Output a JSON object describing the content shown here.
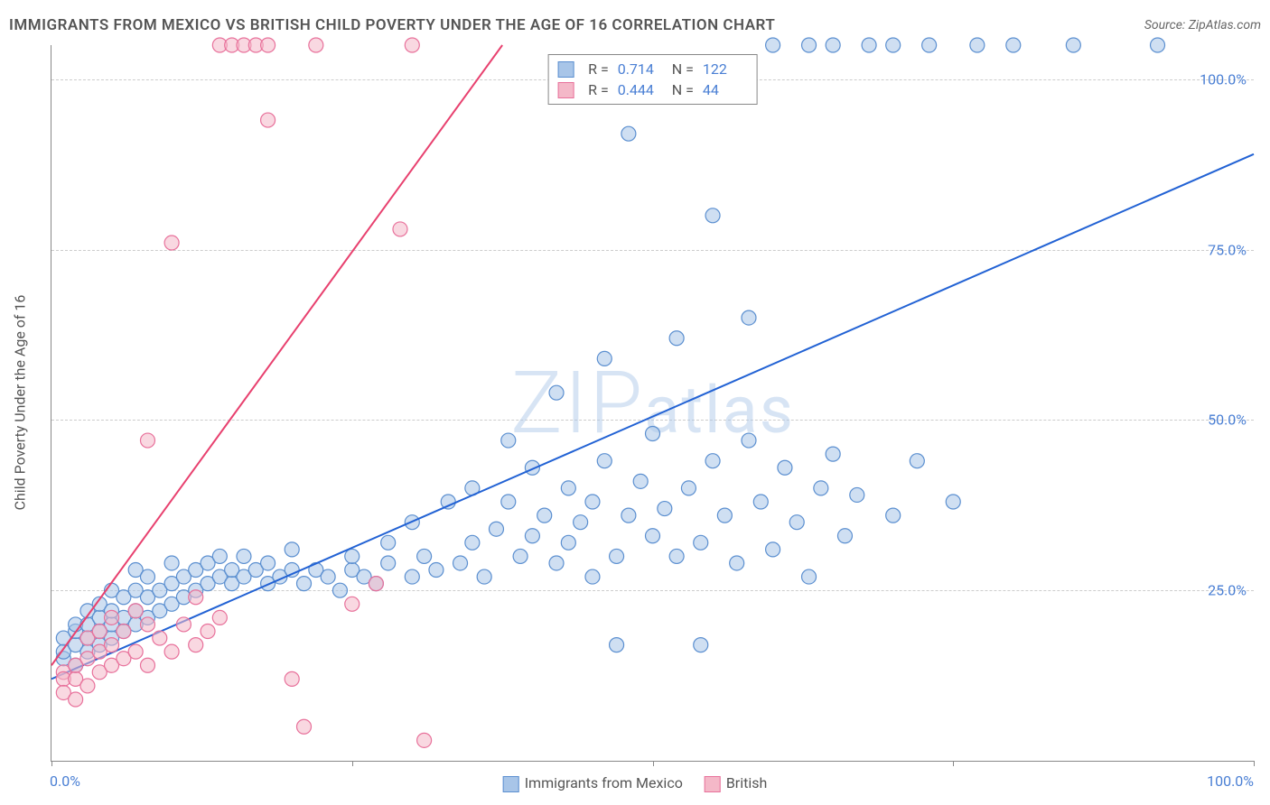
{
  "title": "IMMIGRANTS FROM MEXICO VS BRITISH CHILD POVERTY UNDER THE AGE OF 16 CORRELATION CHART",
  "source": "Source: ZipAtlas.com",
  "watermark": "ZIPatlas",
  "chart": {
    "type": "scatter",
    "xlim": [
      0,
      100
    ],
    "ylim": [
      0,
      105
    ],
    "xticks": [
      0,
      25,
      50,
      75,
      100
    ],
    "xtick_labels": [
      "0.0%",
      "",
      "",
      "",
      "100.0%"
    ],
    "yticks": [
      25,
      50,
      75,
      100
    ],
    "ytick_labels": [
      "25.0%",
      "50.0%",
      "75.0%",
      "100.0%"
    ],
    "ylabel": "Child Poverty Under the Age of 16",
    "background_color": "#ffffff",
    "grid_color": "#cccccc",
    "axis_color": "#888888",
    "tick_label_color": "#4a7fd4",
    "marker_radius": 8,
    "marker_stroke_width": 1.2,
    "line_width": 2,
    "series": [
      {
        "name": "Immigrants from Mexico",
        "fill_color": "#a8c5e8",
        "stroke_color": "#5b8fd0",
        "line_color": "#2262d4",
        "R": "0.714",
        "N": "122",
        "trend": {
          "x1": 0,
          "y1": 12,
          "x2": 100,
          "y2": 89
        },
        "points": [
          [
            1,
            15
          ],
          [
            1,
            16
          ],
          [
            1,
            18
          ],
          [
            2,
            14
          ],
          [
            2,
            17
          ],
          [
            2,
            19
          ],
          [
            2,
            20
          ],
          [
            3,
            16
          ],
          [
            3,
            18
          ],
          [
            3,
            20
          ],
          [
            3,
            22
          ],
          [
            4,
            17
          ],
          [
            4,
            19
          ],
          [
            4,
            21
          ],
          [
            4,
            23
          ],
          [
            5,
            18
          ],
          [
            5,
            20
          ],
          [
            5,
            22
          ],
          [
            5,
            25
          ],
          [
            6,
            19
          ],
          [
            6,
            21
          ],
          [
            6,
            24
          ],
          [
            7,
            20
          ],
          [
            7,
            22
          ],
          [
            7,
            25
          ],
          [
            7,
            28
          ],
          [
            8,
            21
          ],
          [
            8,
            24
          ],
          [
            8,
            27
          ],
          [
            9,
            22
          ],
          [
            9,
            25
          ],
          [
            10,
            23
          ],
          [
            10,
            26
          ],
          [
            10,
            29
          ],
          [
            11,
            24
          ],
          [
            11,
            27
          ],
          [
            12,
            25
          ],
          [
            12,
            28
          ],
          [
            13,
            26
          ],
          [
            13,
            29
          ],
          [
            14,
            27
          ],
          [
            14,
            30
          ],
          [
            15,
            26
          ],
          [
            15,
            28
          ],
          [
            16,
            27
          ],
          [
            16,
            30
          ],
          [
            17,
            28
          ],
          [
            18,
            26
          ],
          [
            18,
            29
          ],
          [
            19,
            27
          ],
          [
            20,
            28
          ],
          [
            20,
            31
          ],
          [
            21,
            26
          ],
          [
            22,
            28
          ],
          [
            23,
            27
          ],
          [
            24,
            25
          ],
          [
            25,
            28
          ],
          [
            25,
            30
          ],
          [
            26,
            27
          ],
          [
            27,
            26
          ],
          [
            28,
            29
          ],
          [
            28,
            32
          ],
          [
            30,
            27
          ],
          [
            30,
            35
          ],
          [
            31,
            30
          ],
          [
            32,
            28
          ],
          [
            33,
            38
          ],
          [
            34,
            29
          ],
          [
            35,
            32
          ],
          [
            35,
            40
          ],
          [
            36,
            27
          ],
          [
            37,
            34
          ],
          [
            38,
            38
          ],
          [
            38,
            47
          ],
          [
            39,
            30
          ],
          [
            40,
            33
          ],
          [
            40,
            43
          ],
          [
            41,
            36
          ],
          [
            42,
            29
          ],
          [
            42,
            54
          ],
          [
            43,
            32
          ],
          [
            43,
            40
          ],
          [
            44,
            35
          ],
          [
            45,
            27
          ],
          [
            45,
            38
          ],
          [
            46,
            44
          ],
          [
            46,
            59
          ],
          [
            47,
            30
          ],
          [
            47,
            17
          ],
          [
            48,
            36
          ],
          [
            48,
            92
          ],
          [
            49,
            41
          ],
          [
            50,
            33
          ],
          [
            50,
            48
          ],
          [
            51,
            37
          ],
          [
            52,
            30
          ],
          [
            52,
            62
          ],
          [
            53,
            40
          ],
          [
            54,
            32
          ],
          [
            54,
            17
          ],
          [
            55,
            44
          ],
          [
            55,
            80
          ],
          [
            56,
            36
          ],
          [
            57,
            29
          ],
          [
            58,
            47
          ],
          [
            58,
            65
          ],
          [
            59,
            38
          ],
          [
            60,
            31
          ],
          [
            60,
            105
          ],
          [
            61,
            43
          ],
          [
            62,
            35
          ],
          [
            63,
            27
          ],
          [
            63,
            105
          ],
          [
            64,
            40
          ],
          [
            65,
            45
          ],
          [
            65,
            105
          ],
          [
            66,
            33
          ],
          [
            67,
            39
          ],
          [
            68,
            105
          ],
          [
            70,
            36
          ],
          [
            70,
            105
          ],
          [
            72,
            44
          ],
          [
            73,
            105
          ],
          [
            75,
            38
          ],
          [
            77,
            105
          ],
          [
            80,
            105
          ],
          [
            85,
            105
          ],
          [
            92,
            105
          ]
        ]
      },
      {
        "name": "British",
        "fill_color": "#f4b8c8",
        "stroke_color": "#e8719b",
        "line_color": "#e8416f",
        "R": "0.444",
        "N": "44",
        "trend": {
          "x1": 0,
          "y1": 14,
          "x2": 37.5,
          "y2": 105
        },
        "points": [
          [
            1,
            13
          ],
          [
            1,
            12
          ],
          [
            1,
            10
          ],
          [
            2,
            12
          ],
          [
            2,
            14
          ],
          [
            2,
            9
          ],
          [
            3,
            11
          ],
          [
            3,
            15
          ],
          [
            3,
            18
          ],
          [
            4,
            13
          ],
          [
            4,
            16
          ],
          [
            4,
            19
          ],
          [
            5,
            14
          ],
          [
            5,
            17
          ],
          [
            5,
            21
          ],
          [
            6,
            15
          ],
          [
            6,
            19
          ],
          [
            7,
            16
          ],
          [
            7,
            22
          ],
          [
            8,
            14
          ],
          [
            8,
            20
          ],
          [
            8,
            47
          ],
          [
            9,
            18
          ],
          [
            10,
            16
          ],
          [
            10,
            76
          ],
          [
            11,
            20
          ],
          [
            12,
            17
          ],
          [
            12,
            24
          ],
          [
            13,
            19
          ],
          [
            14,
            21
          ],
          [
            14,
            105
          ],
          [
            15,
            105
          ],
          [
            16,
            105
          ],
          [
            17,
            105
          ],
          [
            18,
            105
          ],
          [
            18,
            94
          ],
          [
            20,
            12
          ],
          [
            21,
            5
          ],
          [
            22,
            105
          ],
          [
            25,
            23
          ],
          [
            27,
            26
          ],
          [
            29,
            78
          ],
          [
            30,
            105
          ],
          [
            31,
            3
          ]
        ]
      }
    ]
  },
  "legend": {
    "items": [
      {
        "label": "Immigrants from Mexico",
        "fill": "#a8c5e8",
        "stroke": "#5b8fd0"
      },
      {
        "label": "British",
        "fill": "#f4b8c8",
        "stroke": "#e8719b"
      }
    ]
  }
}
